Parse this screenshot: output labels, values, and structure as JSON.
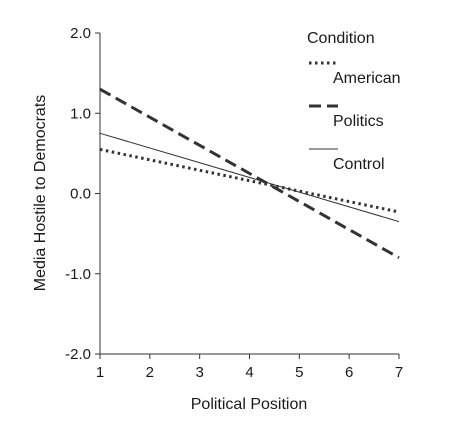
{
  "chart_data": {
    "type": "line",
    "xlabel": "Political Position",
    "ylabel": "Media Hostile to Democrats",
    "xlim": [
      1,
      7
    ],
    "ylim": [
      -2.0,
      2.0
    ],
    "x_ticks": [
      1,
      2,
      3,
      4,
      5,
      6,
      7
    ],
    "x_tick_labels": [
      "1",
      "2",
      "3",
      "4",
      "5",
      "6",
      "7"
    ],
    "y_ticks": [
      -2.0,
      -1.0,
      0.0,
      1.0,
      2.0
    ],
    "y_tick_labels": [
      "-2.0",
      "-1.0",
      "0.0",
      "1.0",
      "2.0"
    ],
    "grid": false,
    "legend": {
      "title": "Condition",
      "position": "top-right"
    },
    "series": [
      {
        "name": "American",
        "style": "dotted",
        "color": "#333333",
        "x": [
          1,
          7
        ],
        "values": [
          0.55,
          -0.23
        ]
      },
      {
        "name": "Politics",
        "style": "dashed",
        "color": "#333333",
        "x": [
          1,
          7
        ],
        "values": [
          1.3,
          -0.8
        ]
      },
      {
        "name": "Control",
        "style": "solid",
        "color": "#333333",
        "x": [
          1,
          7
        ],
        "values": [
          0.75,
          -0.35
        ]
      }
    ]
  }
}
